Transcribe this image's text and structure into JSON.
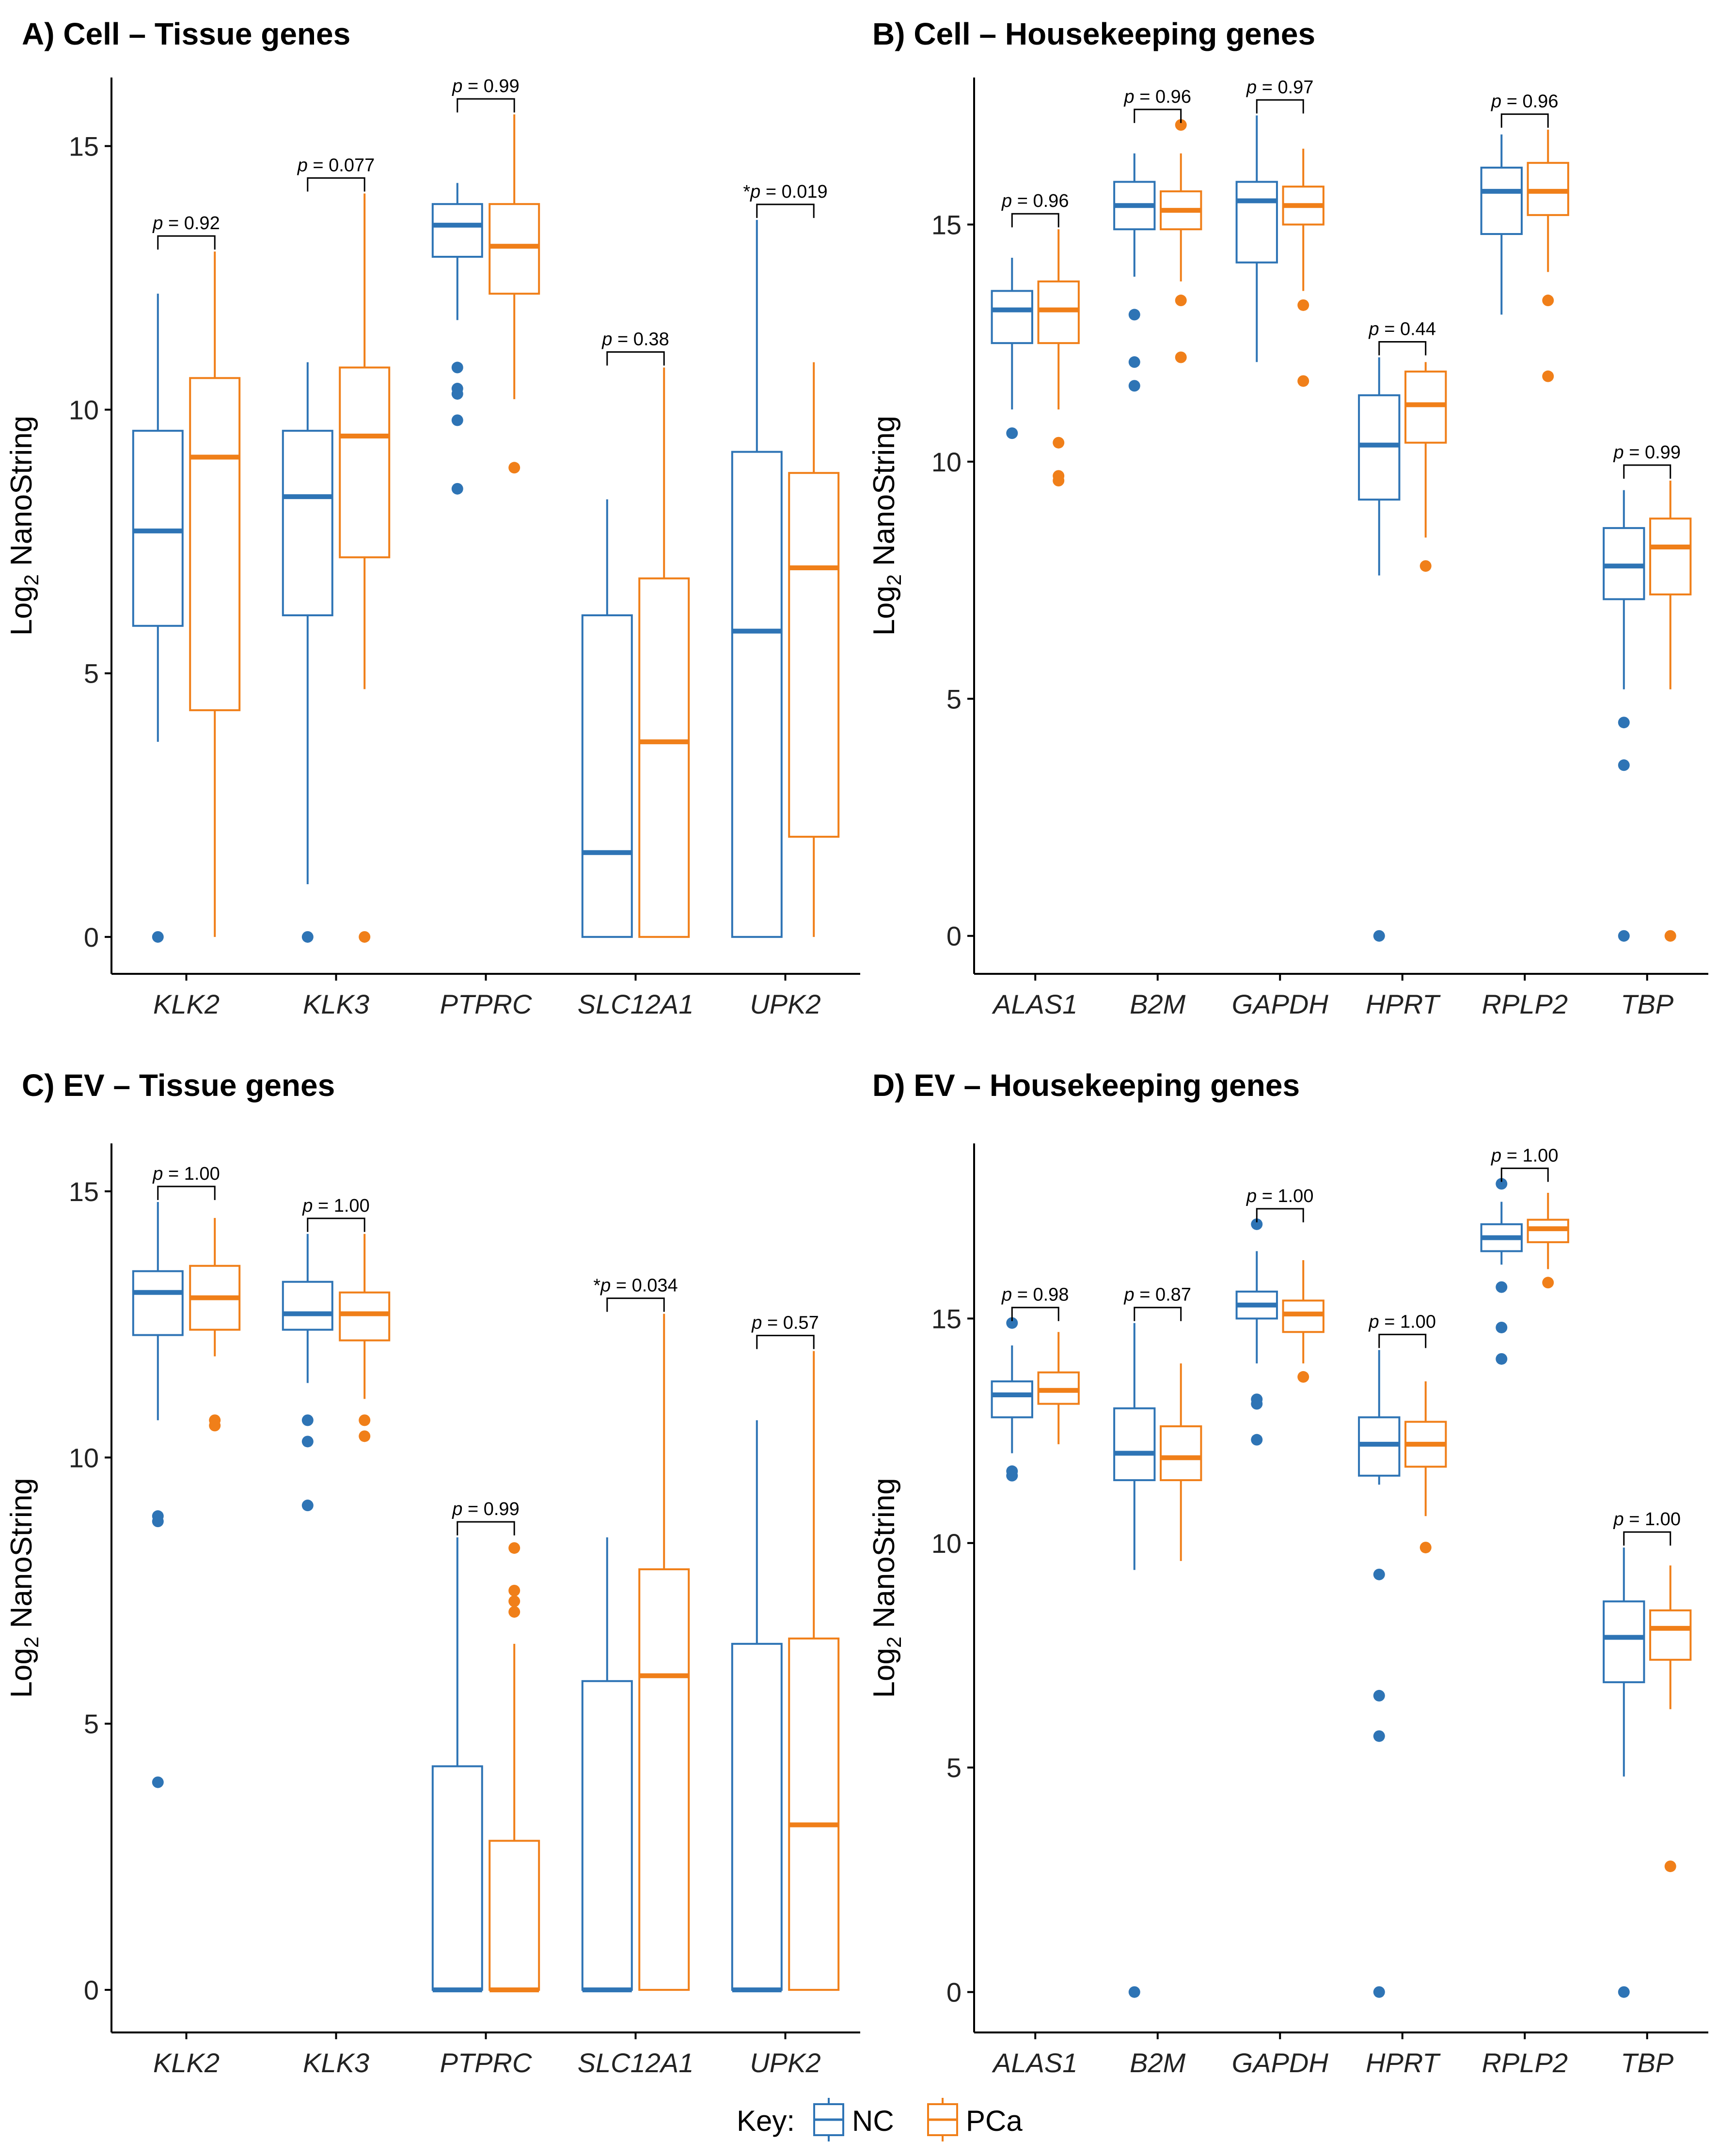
{
  "y_axis_label_main": "Log",
  "y_axis_label_sub": "2",
  "y_axis_label_tail": " NanoString",
  "legend": {
    "title": "Key:",
    "items": [
      {
        "name": "NC",
        "color": "#2E74B5"
      },
      {
        "name": "PCa",
        "color": "#F07F19"
      }
    ]
  },
  "chart_data": [
    {
      "type": "box",
      "title": "A) Cell – Tissue genes",
      "xlabel": "",
      "ylabel": "Log2 NanoString",
      "ylim": [
        -0.7,
        16.3
      ],
      "yticks": [
        0,
        5,
        10,
        15
      ],
      "categories": [
        "KLK2",
        "KLK3",
        "PTPRC",
        "SLC12A1",
        "UPK2"
      ],
      "pvalues": [
        "p = 0.92",
        "p = 0.077",
        "p = 0.99",
        "p = 0.38",
        "*p = 0.019"
      ],
      "series": [
        {
          "name": "NC",
          "boxes": [
            {
              "whislo": 3.7,
              "q1": 5.9,
              "med": 7.7,
              "q3": 9.6,
              "whishi": 12.2,
              "fliers": [
                0
              ]
            },
            {
              "whislo": 1.0,
              "q1": 6.1,
              "med": 8.35,
              "q3": 9.6,
              "whishi": 10.9,
              "fliers": [
                0
              ]
            },
            {
              "whislo": 11.7,
              "q1": 12.9,
              "med": 13.5,
              "q3": 13.9,
              "whishi": 14.3,
              "fliers": [
                10.8,
                10.4,
                10.3,
                9.8,
                8.5
              ]
            },
            {
              "whislo": 0,
              "q1": 0,
              "med": 1.6,
              "q3": 6.1,
              "whishi": 8.3,
              "fliers": []
            },
            {
              "whislo": 0,
              "q1": 0,
              "med": 5.8,
              "q3": 9.2,
              "whishi": 13.6,
              "fliers": []
            }
          ]
        },
        {
          "name": "PCa",
          "boxes": [
            {
              "whislo": 0,
              "q1": 4.3,
              "med": 9.1,
              "q3": 10.6,
              "whishi": 13.0,
              "fliers": []
            },
            {
              "whislo": 4.7,
              "q1": 7.2,
              "med": 9.5,
              "q3": 10.8,
              "whishi": 14.1,
              "fliers": [
                0
              ]
            },
            {
              "whislo": 10.2,
              "q1": 12.2,
              "med": 13.1,
              "q3": 13.9,
              "whishi": 15.6,
              "fliers": [
                8.9
              ]
            },
            {
              "whislo": 0,
              "q1": 0,
              "med": 3.7,
              "q3": 6.8,
              "whishi": 10.8,
              "fliers": []
            },
            {
              "whislo": 0,
              "q1": 1.9,
              "med": 7.0,
              "q3": 8.8,
              "whishi": 10.9,
              "fliers": []
            }
          ]
        }
      ]
    },
    {
      "type": "box",
      "title": "B) Cell – Housekeeping genes",
      "xlabel": "",
      "ylabel": "Log2 NanoString",
      "ylim": [
        -0.8,
        18.1
      ],
      "yticks": [
        0,
        5,
        10,
        15
      ],
      "categories": [
        "ALAS1",
        "B2M",
        "GAPDH",
        "HPRT",
        "RPLP2",
        "TBP"
      ],
      "pvalues": [
        "p = 0.96",
        "p = 0.96",
        "p = 0.97",
        "p = 0.44",
        "p = 0.96",
        "p = 0.99"
      ],
      "series": [
        {
          "name": "NC",
          "boxes": [
            {
              "whislo": 11.1,
              "q1": 12.5,
              "med": 13.2,
              "q3": 13.6,
              "whishi": 14.3,
              "fliers": [
                10.6
              ]
            },
            {
              "whislo": 13.9,
              "q1": 14.9,
              "med": 15.4,
              "q3": 15.9,
              "whishi": 16.5,
              "fliers": [
                13.1,
                12.1,
                11.6
              ]
            },
            {
              "whislo": 12.1,
              "q1": 14.2,
              "med": 15.5,
              "q3": 15.9,
              "whishi": 17.3,
              "fliers": []
            },
            {
              "whislo": 7.6,
              "q1": 9.2,
              "med": 10.35,
              "q3": 11.4,
              "whishi": 12.2,
              "fliers": [
                0
              ]
            },
            {
              "whislo": 13.1,
              "q1": 14.8,
              "med": 15.7,
              "q3": 16.2,
              "whishi": 16.9,
              "fliers": []
            },
            {
              "whislo": 5.2,
              "q1": 7.1,
              "med": 7.8,
              "q3": 8.6,
              "whishi": 9.4,
              "fliers": [
                4.5,
                3.6,
                0
              ]
            }
          ]
        },
        {
          "name": "PCa",
          "boxes": [
            {
              "whislo": 11.1,
              "q1": 12.5,
              "med": 13.2,
              "q3": 13.8,
              "whishi": 14.9,
              "fliers": [
                10.4,
                9.7,
                9.6
              ]
            },
            {
              "whislo": 13.8,
              "q1": 14.9,
              "med": 15.3,
              "q3": 15.7,
              "whishi": 16.5,
              "fliers": [
                17.1,
                13.4,
                12.2
              ]
            },
            {
              "whislo": 13.6,
              "q1": 15.0,
              "med": 15.4,
              "q3": 15.8,
              "whishi": 16.6,
              "fliers": [
                13.3,
                11.7
              ]
            },
            {
              "whislo": 8.4,
              "q1": 10.4,
              "med": 11.2,
              "q3": 11.9,
              "whishi": 12.1,
              "fliers": [
                7.8
              ]
            },
            {
              "whislo": 14.0,
              "q1": 15.2,
              "med": 15.7,
              "q3": 16.3,
              "whishi": 17.0,
              "fliers": [
                13.4,
                11.8
              ]
            },
            {
              "whislo": 5.2,
              "q1": 7.2,
              "med": 8.2,
              "q3": 8.8,
              "whishi": 9.6,
              "fliers": [
                0
              ]
            }
          ]
        }
      ]
    },
    {
      "type": "box",
      "title": "C) EV – Tissue genes",
      "xlabel": "",
      "ylabel": "Log2 NanoString",
      "ylim": [
        -0.8,
        15.9
      ],
      "yticks": [
        0,
        5,
        10,
        15
      ],
      "categories": [
        "KLK2",
        "KLK3",
        "PTPRC",
        "SLC12A1",
        "UPK2"
      ],
      "pvalues": [
        "p = 1.00",
        "p = 1.00",
        "p = 0.99",
        "*p = 0.034",
        "p = 0.57"
      ],
      "series": [
        {
          "name": "NC",
          "boxes": [
            {
              "whislo": 10.7,
              "q1": 12.3,
              "med": 13.1,
              "q3": 13.5,
              "whishi": 14.8,
              "fliers": [
                8.9,
                8.8,
                3.9
              ]
            },
            {
              "whislo": 11.4,
              "q1": 12.4,
              "med": 12.7,
              "q3": 13.3,
              "whishi": 14.2,
              "fliers": [
                10.7,
                10.3,
                9.1
              ]
            },
            {
              "whislo": 0,
              "q1": 0,
              "med": 0,
              "q3": 4.2,
              "whishi": 8.5,
              "fliers": []
            },
            {
              "whislo": 0,
              "q1": 0,
              "med": 0,
              "q3": 5.8,
              "whishi": 8.5,
              "fliers": []
            },
            {
              "whislo": 0,
              "q1": 0,
              "med": 0,
              "q3": 6.5,
              "whishi": 10.7,
              "fliers": []
            }
          ]
        },
        {
          "name": "PCa",
          "boxes": [
            {
              "whislo": 11.9,
              "q1": 12.4,
              "med": 13.0,
              "q3": 13.6,
              "whishi": 14.5,
              "fliers": [
                10.7,
                10.6
              ]
            },
            {
              "whislo": 11.1,
              "q1": 12.2,
              "med": 12.7,
              "q3": 13.1,
              "whishi": 14.2,
              "fliers": [
                10.7,
                10.4
              ]
            },
            {
              "whislo": 0,
              "q1": 0,
              "med": 0,
              "q3": 2.8,
              "whishi": 6.5,
              "fliers": [
                8.3,
                7.5,
                7.3,
                7.1
              ]
            },
            {
              "whislo": 0,
              "q1": 0,
              "med": 5.9,
              "q3": 7.9,
              "whishi": 12.7,
              "fliers": []
            },
            {
              "whislo": 0,
              "q1": 0,
              "med": 3.1,
              "q3": 6.6,
              "whishi": 12.0,
              "fliers": []
            }
          ]
        }
      ]
    },
    {
      "type": "box",
      "title": "D) EV – Housekeeping genes",
      "xlabel": "",
      "ylabel": "Log2 NanoString",
      "ylim": [
        -0.9,
        18.9
      ],
      "yticks": [
        0,
        5,
        10,
        15
      ],
      "categories": [
        "ALAS1",
        "B2M",
        "GAPDH",
        "HPRT",
        "RPLP2",
        "TBP"
      ],
      "pvalues": [
        "p = 0.98",
        "p = 0.87",
        "p = 1.00",
        "p = 1.00",
        "p = 1.00",
        "p = 1.00"
      ],
      "series": [
        {
          "name": "NC",
          "boxes": [
            {
              "whislo": 12.0,
              "q1": 12.8,
              "med": 13.3,
              "q3": 13.6,
              "whishi": 14.4,
              "fliers": [
                14.9,
                11.6,
                11.5
              ]
            },
            {
              "whislo": 9.4,
              "q1": 11.4,
              "med": 12.0,
              "q3": 13.0,
              "whishi": 14.9,
              "fliers": [
                0
              ]
            },
            {
              "whislo": 14.0,
              "q1": 15.0,
              "med": 15.3,
              "q3": 15.6,
              "whishi": 16.5,
              "fliers": [
                17.1,
                13.2,
                13.1,
                12.3
              ]
            },
            {
              "whislo": 11.3,
              "q1": 11.5,
              "med": 12.2,
              "q3": 12.8,
              "whishi": 14.3,
              "fliers": [
                9.3,
                6.6,
                5.7,
                0
              ]
            },
            {
              "whislo": 16.2,
              "q1": 16.5,
              "med": 16.8,
              "q3": 17.1,
              "whishi": 17.6,
              "fliers": [
                18.0,
                15.7,
                14.8,
                14.1
              ]
            },
            {
              "whislo": 4.8,
              "q1": 6.9,
              "med": 7.9,
              "q3": 8.7,
              "whishi": 9.9,
              "fliers": [
                0
              ]
            }
          ]
        },
        {
          "name": "PCa",
          "boxes": [
            {
              "whislo": 12.2,
              "q1": 13.1,
              "med": 13.4,
              "q3": 13.8,
              "whishi": 14.7,
              "fliers": []
            },
            {
              "whislo": 9.6,
              "q1": 11.4,
              "med": 11.9,
              "q3": 12.6,
              "whishi": 14.0,
              "fliers": []
            },
            {
              "whislo": 14.0,
              "q1": 14.7,
              "med": 15.1,
              "q3": 15.4,
              "whishi": 16.3,
              "fliers": [
                13.7
              ]
            },
            {
              "whislo": 10.6,
              "q1": 11.7,
              "med": 12.2,
              "q3": 12.7,
              "whishi": 13.6,
              "fliers": [
                9.9
              ]
            },
            {
              "whislo": 16.1,
              "q1": 16.7,
              "med": 17.0,
              "q3": 17.2,
              "whishi": 17.8,
              "fliers": [
                15.8
              ]
            },
            {
              "whislo": 6.3,
              "q1": 7.4,
              "med": 8.1,
              "q3": 8.5,
              "whishi": 9.5,
              "fliers": [
                2.8
              ]
            }
          ]
        }
      ]
    }
  ]
}
